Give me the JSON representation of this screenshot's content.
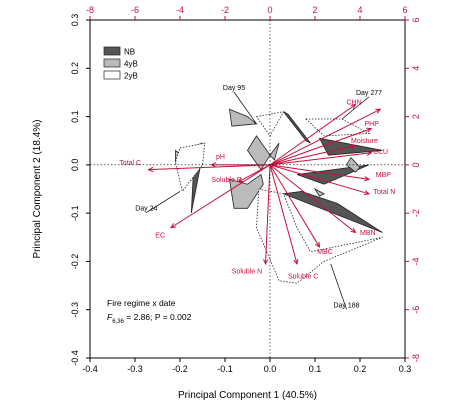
{
  "chart_data": {
    "type": "scatter",
    "title": "",
    "xlabel": "Principal Component 1 (40.5%)",
    "ylabel": "Principal Component 2 (18.4%)",
    "xlim": [
      -0.4,
      0.3
    ],
    "ylim": [
      -0.4,
      0.3
    ],
    "xticks": [
      -0.4,
      -0.3,
      -0.2,
      -0.1,
      0.0,
      0.1,
      0.2,
      0.3
    ],
    "yticks": [
      -0.4,
      -0.3,
      -0.2,
      -0.1,
      0.0,
      0.1,
      0.2,
      0.3
    ],
    "xtick_labels": [
      "-0.4",
      "-0.3",
      "-0.2",
      "-0.1",
      "0.0",
      "0.1",
      "0.2",
      "0.3"
    ],
    "ytick_labels": [
      "-0.4",
      "-0.3",
      "-0.2",
      "-0.1",
      "0.0",
      "0.1",
      "0.2",
      "0.3"
    ],
    "x2lim": [
      -8,
      6
    ],
    "y2lim": [
      -8,
      6
    ],
    "x2ticks": [
      -8,
      -6,
      -4,
      -2,
      0,
      2,
      4,
      6
    ],
    "y2ticks": [
      -8,
      -6,
      -4,
      -2,
      0,
      2,
      4,
      6
    ],
    "x2tick_labels": [
      "-8",
      "-6",
      "-4",
      "-2",
      "0",
      "2",
      "4",
      "6"
    ],
    "y2tick_labels": [
      "-8",
      "-6",
      "-4",
      "-2",
      "0",
      "2",
      "4",
      "6"
    ],
    "grid": false,
    "legend_position": "top-left",
    "legend": [
      {
        "name": "NB",
        "fill": "#555555"
      },
      {
        "name": "4yB",
        "fill": "#bbbbbb"
      },
      {
        "name": "2yB",
        "fill": "#ffffff"
      }
    ],
    "annotation": {
      "line1": "Fire regime x date",
      "f_label": "F",
      "f_sub": "6,36",
      "f_rest": " = 2.86; P = 0.002"
    },
    "loadings_color": "#c8103c",
    "loadings": [
      {
        "label": "CHN",
        "x": 0.19,
        "y": 0.125
      },
      {
        "label": "Day 277",
        "x": 0.245,
        "y": 0.115
      },
      {
        "label": "PHP",
        "x": 0.225,
        "y": 0.075
      },
      {
        "label": "Moisture",
        "x": 0.19,
        "y": 0.04
      },
      {
        "label": "GLU",
        "x": 0.225,
        "y": 0.025
      },
      {
        "label": "pH",
        "x": -0.13,
        "y": 0.0
      },
      {
        "label": "Total C",
        "x": -0.27,
        "y": -0.01
      },
      {
        "label": "Soluble P",
        "x": -0.07,
        "y": -0.035
      },
      {
        "label": "MBP",
        "x": 0.22,
        "y": -0.03
      },
      {
        "label": "Total N",
        "x": 0.22,
        "y": -0.06
      },
      {
        "label": "MBN",
        "x": 0.19,
        "y": -0.14
      },
      {
        "label": "EC",
        "x": -0.22,
        "y": -0.13
      },
      {
        "label": "MBC",
        "x": 0.11,
        "y": -0.17
      },
      {
        "label": "Soluble N",
        "x": -0.01,
        "y": -0.205
      },
      {
        "label": "Soluble C",
        "x": 0.06,
        "y": -0.205
      }
    ],
    "loading_labels": [
      {
        "text": "CHN",
        "x": 0.17,
        "y": 0.125
      },
      {
        "text": "PHP",
        "x": 0.21,
        "y": 0.08
      },
      {
        "text": "Moisture",
        "x": 0.18,
        "y": 0.045
      },
      {
        "text": "GLU",
        "x": 0.23,
        "y": 0.023
      },
      {
        "text": "pH",
        "x": -0.12,
        "y": 0.012
      },
      {
        "text": "Total C",
        "x": -0.335,
        "y": 0.0
      },
      {
        "text": "Soluble P",
        "x": -0.13,
        "y": -0.035
      },
      {
        "text": "MBP",
        "x": 0.235,
        "y": -0.025
      },
      {
        "text": "Total N",
        "x": 0.23,
        "y": -0.06
      },
      {
        "text": "MBN",
        "x": 0.2,
        "y": -0.145
      },
      {
        "text": "EC",
        "x": -0.255,
        "y": -0.15
      },
      {
        "text": "MBC",
        "x": 0.105,
        "y": -0.185
      },
      {
        "text": "Soluble N",
        "x": -0.085,
        "y": -0.225
      },
      {
        "text": "Soluble C",
        "x": 0.04,
        "y": -0.235
      }
    ],
    "date_labels": [
      {
        "text": "Day 95",
        "x": -0.08,
        "y": 0.155,
        "leader_to": [
          -0.03,
          0.085
        ]
      },
      {
        "text": "Day 277",
        "x": 0.22,
        "y": 0.145,
        "leader_to": [
          0.16,
          0.095
        ]
      },
      {
        "text": "Day 24",
        "x": -0.275,
        "y": -0.095,
        "leader_to": [
          -0.2,
          -0.055
        ]
      },
      {
        "text": "Day 188",
        "x": 0.17,
        "y": -0.295,
        "leader_to": [
          0.135,
          -0.205
        ]
      }
    ],
    "series": [
      {
        "name": "NB",
        "fill": "#555555",
        "border": "solid",
        "polygons": [
          [
            [
              0.03,
              0.11
            ],
            [
              0.08,
              0.05
            ],
            [
              0.09,
              0.045
            ],
            [
              0.04,
              0.105
            ]
          ],
          [
            [
              0.11,
              0.055
            ],
            [
              0.25,
              0.03
            ],
            [
              0.13,
              0.02
            ]
          ],
          [
            [
              0.06,
              -0.02
            ],
            [
              0.22,
              0.0
            ],
            [
              0.12,
              -0.04
            ]
          ],
          [
            [
              -0.17,
              -0.01
            ],
            [
              -0.15,
              0.02
            ],
            [
              -0.175,
              -0.1
            ]
          ],
          [
            [
              0.03,
              -0.06
            ],
            [
              0.25,
              -0.14
            ],
            [
              0.15,
              -0.08
            ],
            [
              0.07,
              -0.055
            ]
          ]
        ]
      },
      {
        "name": "4yB",
        "fill": "#bbbbbb",
        "border": "solid",
        "polygons": [
          [
            [
              -0.09,
              0.115
            ],
            [
              -0.05,
              0.1
            ],
            [
              -0.03,
              0.085
            ],
            [
              -0.085,
              0.08
            ]
          ],
          [
            [
              -0.03,
              0.06
            ],
            [
              0.0,
              0.02
            ],
            [
              -0.02,
              -0.01
            ],
            [
              -0.05,
              0.03
            ]
          ],
          [
            [
              0.0,
              0.02
            ],
            [
              0.02,
              0.045
            ],
            [
              0.01,
              0.01
            ]
          ],
          [
            [
              -0.09,
              -0.03
            ],
            [
              -0.05,
              -0.04
            ],
            [
              -0.02,
              -0.02
            ],
            [
              -0.015,
              -0.04
            ],
            [
              -0.05,
              -0.09
            ],
            [
              -0.08,
              -0.09
            ]
          ],
          [
            [
              -0.21,
              0.03
            ],
            [
              -0.19,
              0.015
            ],
            [
              -0.21,
              0.005
            ]
          ],
          [
            [
              0.18,
              0.015
            ],
            [
              0.2,
              -0.005
            ],
            [
              0.19,
              -0.015
            ],
            [
              0.17,
              0.0
            ]
          ],
          [
            [
              0.1,
              -0.05
            ],
            [
              0.12,
              -0.06
            ],
            [
              0.11,
              -0.065
            ]
          ],
          [
            [
              -0.2,
              0.03
            ],
            [
              -0.15,
              0.045
            ],
            [
              -0.16,
              0.02
            ]
          ]
        ]
      },
      {
        "name": "2yB",
        "fill": "#ffffff",
        "border": "dotted",
        "polygons": [
          [
            [
              -0.03,
              0.1
            ],
            [
              0.03,
              0.11
            ],
            [
              0.0,
              0.06
            ]
          ],
          [
            [
              0.08,
              0.095
            ],
            [
              0.16,
              0.095
            ],
            [
              0.22,
              0.065
            ],
            [
              0.12,
              0.06
            ]
          ],
          [
            [
              -0.2,
              0.035
            ],
            [
              -0.145,
              0.045
            ],
            [
              -0.15,
              0.0
            ],
            [
              -0.195,
              -0.055
            ],
            [
              -0.21,
              0.005
            ]
          ],
          [
            [
              -0.025,
              -0.05
            ],
            [
              0.03,
              -0.06
            ],
            [
              0.06,
              -0.13
            ],
            [
              0.09,
              -0.18
            ],
            [
              0.25,
              -0.15
            ],
            [
              0.12,
              -0.2
            ],
            [
              0.06,
              -0.245
            ],
            [
              0.02,
              -0.24
            ],
            [
              -0.03,
              -0.13
            ]
          ]
        ]
      }
    ]
  }
}
